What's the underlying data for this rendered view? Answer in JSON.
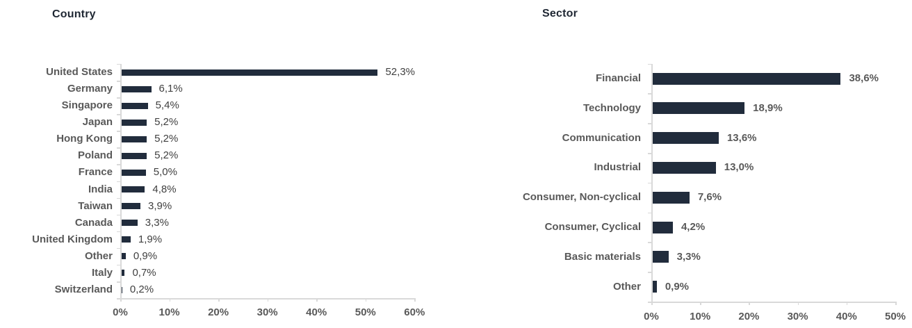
{
  "page": {
    "background": "#ffffff"
  },
  "chart_data": [
    {
      "type": "bar",
      "orientation": "horizontal",
      "title": "Country",
      "categories": [
        "United States",
        "Germany",
        "Singapore",
        "Japan",
        "Hong Kong",
        "Poland",
        "France",
        "India",
        "Taiwan",
        "Canada",
        "United Kingdom",
        "Other",
        "Italy",
        "Switzerland"
      ],
      "values": [
        52.3,
        6.1,
        5.4,
        5.2,
        5.2,
        5.2,
        5.0,
        4.8,
        3.9,
        3.3,
        1.9,
        0.9,
        0.7,
        0.2
      ],
      "value_labels": [
        "52,3%",
        "6,1%",
        "5,4%",
        "5,2%",
        "5,2%",
        "5,2%",
        "5,0%",
        "4,8%",
        "3,9%",
        "3,3%",
        "1,9%",
        "0,9%",
        "0,7%",
        "0,2%"
      ],
      "x_ticks": [
        "0%",
        "10%",
        "20%",
        "30%",
        "40%",
        "50%",
        "60%"
      ],
      "xlim": [
        0,
        60
      ],
      "xlabel": "",
      "ylabel": "",
      "grid": false,
      "legend": false,
      "bar_color": "#212c3c",
      "title_color": "#1f2733",
      "category_label_color": "#595959",
      "value_label_color": "#404040",
      "value_label_bold": false,
      "tick_label_color": "#595959",
      "axis_color": "#d9d9d9"
    },
    {
      "type": "bar",
      "orientation": "horizontal",
      "title": "Sector",
      "categories": [
        "Financial",
        "Technology",
        "Communication",
        "Industrial",
        "Consumer, Non-cyclical",
        "Consumer, Cyclical",
        "Basic materials",
        "Other"
      ],
      "values": [
        38.6,
        18.9,
        13.6,
        13.0,
        7.6,
        4.2,
        3.3,
        0.9
      ],
      "value_labels": [
        "38,6%",
        "18,9%",
        "13,6%",
        "13,0%",
        "7,6%",
        "4,2%",
        "3,3%",
        "0,9%"
      ],
      "x_ticks": [
        "0%",
        "10%",
        "20%",
        "30%",
        "40%",
        "50%"
      ],
      "xlim": [
        0,
        50
      ],
      "xlabel": "",
      "ylabel": "",
      "grid": false,
      "legend": false,
      "bar_color": "#212c3c",
      "title_color": "#1f2733",
      "category_label_color": "#595959",
      "value_label_color": "#595959",
      "value_label_bold": true,
      "tick_label_color": "#595959",
      "axis_color": "#d9d9d9"
    }
  ]
}
